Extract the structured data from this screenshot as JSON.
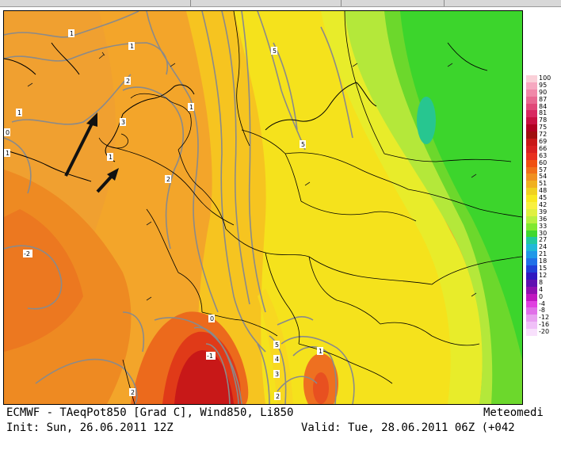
{
  "map": {
    "contour_labels": [
      "1",
      "1",
      "1",
      "1",
      "2",
      "3",
      "1",
      "0",
      "1",
      "2",
      "5",
      "5",
      "-2",
      "0",
      "-1",
      "5",
      "4",
      "3",
      "1",
      "2",
      "2"
    ]
  },
  "legend": {
    "values": [
      "100",
      "95",
      "90",
      "87",
      "84",
      "81",
      "78",
      "75",
      "72",
      "69",
      "66",
      "63",
      "60",
      "57",
      "54",
      "51",
      "48",
      "45",
      "42",
      "39",
      "36",
      "33",
      "30",
      "27",
      "24",
      "21",
      "18",
      "15",
      "12",
      "8",
      "4",
      "0",
      "-4",
      "-8",
      "-12",
      "-16",
      "-20"
    ],
    "colors": [
      "#fad0d8",
      "#f6a8c0",
      "#f088a8",
      "#e86890",
      "#e04878",
      "#d82860",
      "#c81040",
      "#b00020",
      "#a01010",
      "#c81818",
      "#d82020",
      "#e83020",
      "#f05010",
      "#f07018",
      "#f09020",
      "#f0b020",
      "#f0d020",
      "#f8e820",
      "#f8f040",
      "#e0f040",
      "#b8f040",
      "#80e830",
      "#40d830",
      "#20c8a0",
      "#20b8d8",
      "#2098e8",
      "#2070e8",
      "#2040d8",
      "#3018c0",
      "#6010b0",
      "#9010b0",
      "#c018c0",
      "#e040e0",
      "#e070e8",
      "#e8a0f0",
      "#f0c0f8",
      "#f8e0fc"
    ]
  },
  "footer": {
    "line1": "ECMWF - TAeqPot850 [Grad C], Wind850, Li850",
    "brand": "Meteomedi",
    "line2": "Init: Sun, 26.06.2011 12Z",
    "valid": "Valid: Tue, 28.06.2011 06Z (+042"
  }
}
